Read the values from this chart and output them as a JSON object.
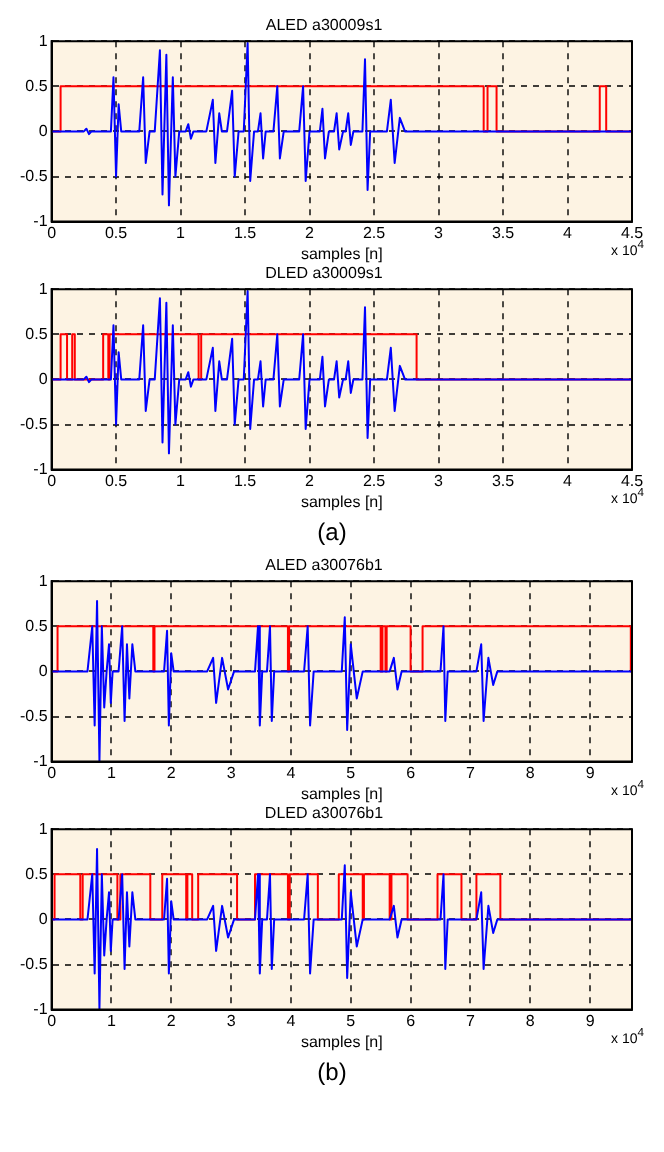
{
  "chart_data": [
    {
      "type": "line",
      "title": "ALED a30009s1",
      "xlabel": "samples [n]",
      "xlim": [
        0,
        4.5
      ],
      "xticks": [
        0,
        0.5,
        1,
        1.5,
        2,
        2.5,
        3,
        3.5,
        4,
        4.5
      ],
      "ylim": [
        -1,
        1
      ],
      "yticks": [
        -1,
        -0.5,
        0,
        0.5,
        1
      ],
      "grid": true,
      "legend": false,
      "marker": "none",
      "annotations": [
        "x 10$^{4}$"
      ],
      "series": [
        {
          "type": "line",
          "color": "#0000ff",
          "x": [
            0,
            0.25,
            0.27,
            0.29,
            0.31,
            0.46,
            0.48,
            0.5,
            0.52,
            0.54,
            0.68,
            0.71,
            0.73,
            0.76,
            0.8,
            0.84,
            0.86,
            0.89,
            0.91,
            0.94,
            0.96,
            0.99,
            1.04,
            1.06,
            1.08,
            1.1,
            1.2,
            1.25,
            1.27,
            1.3,
            1.32,
            1.36,
            1.4,
            1.42,
            1.45,
            1.49,
            1.52,
            1.54,
            1.57,
            1.6,
            1.62,
            1.64,
            1.66,
            1.72,
            1.75,
            1.77,
            1.8,
            1.92,
            1.95,
            1.97,
            2.0,
            2.08,
            2.1,
            2.12,
            2.15,
            2.19,
            2.21,
            2.23,
            2.26,
            2.28,
            2.3,
            2.32,
            2.34,
            2.41,
            2.43,
            2.45,
            2.47,
            2.6,
            2.63,
            2.66,
            2.7,
            2.74,
            4.5
          ],
          "values": [
            0,
            0,
            0.03,
            -0.03,
            0,
            0,
            0.6,
            -0.5,
            0.3,
            0,
            0,
            0.6,
            -0.35,
            0,
            0,
            0.9,
            -0.7,
            0.85,
            -0.82,
            0.6,
            -0.5,
            0,
            0,
            0.08,
            -0.08,
            0,
            0,
            0.35,
            -0.35,
            0.2,
            0,
            0,
            0.45,
            -0.5,
            0,
            0,
            0.98,
            -0.55,
            0,
            0,
            0.2,
            -0.3,
            0,
            0,
            0.5,
            -0.3,
            0,
            0,
            0.5,
            -0.55,
            0,
            0,
            0.25,
            -0.3,
            0,
            0,
            0.2,
            -0.2,
            0,
            0,
            0.2,
            -0.15,
            0,
            0,
            0.8,
            -0.65,
            0,
            0,
            0.35,
            -0.35,
            0.15,
            0,
            0
          ]
        },
        {
          "type": "step",
          "color": "#ff0000",
          "x": [
            0,
            0.07,
            3.35,
            3.38,
            3.45,
            4.25,
            4.3,
            4.5
          ],
          "values": [
            0,
            0.5,
            0,
            0.5,
            0,
            0.5,
            0,
            0
          ]
        }
      ]
    },
    {
      "type": "line",
      "title": "DLED a30009s1",
      "xlabel": "samples [n]",
      "xlim": [
        0,
        4.5
      ],
      "xticks": [
        0,
        0.5,
        1,
        1.5,
        2,
        2.5,
        3,
        3.5,
        4,
        4.5
      ],
      "ylim": [
        -1,
        1
      ],
      "yticks": [
        -1,
        -0.5,
        0,
        0.5,
        1
      ],
      "grid": true,
      "legend": false,
      "marker": "none",
      "annotations": [
        "x 10$^{4}$",
        "(a)"
      ],
      "series": [
        {
          "type": "line",
          "color": "#0000ff",
          "x": [
            0,
            0.25,
            0.27,
            0.29,
            0.31,
            0.46,
            0.48,
            0.5,
            0.52,
            0.54,
            0.68,
            0.71,
            0.73,
            0.76,
            0.8,
            0.84,
            0.86,
            0.89,
            0.91,
            0.94,
            0.96,
            0.99,
            1.04,
            1.06,
            1.08,
            1.1,
            1.2,
            1.25,
            1.27,
            1.3,
            1.32,
            1.36,
            1.4,
            1.42,
            1.45,
            1.49,
            1.52,
            1.54,
            1.57,
            1.6,
            1.62,
            1.64,
            1.66,
            1.72,
            1.75,
            1.77,
            1.8,
            1.92,
            1.95,
            1.97,
            2.0,
            2.08,
            2.1,
            2.12,
            2.15,
            2.19,
            2.21,
            2.23,
            2.26,
            2.28,
            2.3,
            2.32,
            2.34,
            2.41,
            2.43,
            2.45,
            2.47,
            2.6,
            2.63,
            2.66,
            2.7,
            2.74,
            4.5
          ],
          "values": [
            0,
            0,
            0.03,
            -0.03,
            0,
            0,
            0.6,
            -0.5,
            0.3,
            0,
            0,
            0.6,
            -0.35,
            0,
            0,
            0.9,
            -0.7,
            0.85,
            -0.82,
            0.6,
            -0.5,
            0,
            0,
            0.08,
            -0.08,
            0,
            0,
            0.35,
            -0.35,
            0.2,
            0,
            0,
            0.45,
            -0.5,
            0,
            0,
            0.98,
            -0.55,
            0,
            0,
            0.2,
            -0.3,
            0,
            0,
            0.5,
            -0.3,
            0,
            0,
            0.5,
            -0.55,
            0,
            0,
            0.25,
            -0.3,
            0,
            0,
            0.2,
            -0.2,
            0,
            0,
            0.2,
            -0.15,
            0,
            0,
            0.8,
            -0.65,
            0,
            0,
            0.35,
            -0.35,
            0.15,
            0,
            0
          ]
        },
        {
          "type": "step",
          "color": "#ff0000",
          "x": [
            0,
            0.07,
            0.12,
            0.16,
            0.18,
            0.4,
            0.44,
            0.45,
            1.14,
            1.16,
            2.83,
            4.5
          ],
          "values": [
            0,
            0.5,
            0,
            0.5,
            0,
            0.5,
            0,
            0.5,
            0,
            0.5,
            0,
            0
          ]
        }
      ]
    },
    {
      "type": "line",
      "title": "ALED a30076b1",
      "xlabel": "samples [n]",
      "xlim": [
        0,
        9.7
      ],
      "xticks": [
        0,
        1,
        2,
        3,
        4,
        5,
        6,
        7,
        8,
        9
      ],
      "ylim": [
        -1,
        1
      ],
      "yticks": [
        -1,
        -0.5,
        0,
        0.5,
        1
      ],
      "grid": true,
      "legend": false,
      "marker": "none",
      "annotations": [
        "x 10$^{4}$"
      ],
      "series": [
        {
          "type": "line",
          "color": "#0000ff",
          "x": [
            0,
            0.6,
            0.68,
            0.72,
            0.76,
            0.8,
            0.84,
            0.88,
            0.92,
            0.93,
            0.96,
            0.99,
            1.02,
            1.12,
            1.18,
            1.22,
            1.26,
            1.3,
            1.35,
            1.4,
            1.88,
            1.93,
            1.96,
            2.0,
            2.04,
            2.6,
            2.7,
            2.75,
            2.85,
            2.95,
            3.05,
            3.4,
            3.45,
            3.48,
            3.52,
            3.6,
            3.65,
            3.68,
            3.72,
            4.22,
            4.28,
            4.32,
            4.38,
            4.85,
            4.9,
            4.94,
            5.0,
            5.1,
            5.2,
            5.65,
            5.72,
            5.78,
            5.85,
            6.5,
            6.55,
            6.58,
            6.62,
            7.1,
            7.18,
            7.22,
            7.3,
            7.38,
            7.45,
            9.7
          ],
          "values": [
            0,
            0,
            0.5,
            -0.6,
            0.78,
            -1.0,
            0.5,
            -0.4,
            0,
            0,
            0.3,
            -0.35,
            0,
            0,
            0.5,
            -0.55,
            0.3,
            -0.3,
            0.3,
            0,
            0,
            0.45,
            -0.6,
            0.2,
            0,
            0,
            0.15,
            -0.35,
            0.15,
            -0.2,
            0,
            0,
            0.5,
            -0.6,
            0,
            0,
            0.5,
            -0.55,
            0,
            0,
            0.5,
            -0.6,
            0,
            0,
            0.6,
            -0.65,
            0.3,
            -0.3,
            0,
            0,
            0.15,
            -0.2,
            0,
            0,
            0.5,
            -0.55,
            0,
            0,
            0.3,
            -0.55,
            0.15,
            -0.15,
            0,
            0
          ]
        },
        {
          "type": "step",
          "color": "#ff0000",
          "x": [
            0,
            0.1,
            1.7,
            1.72,
            3.95,
            3.97,
            5.5,
            5.53,
            5.58,
            5.6,
            6.0,
            6.2,
            9.68,
            9.7
          ],
          "values": [
            0,
            0.5,
            0,
            0.5,
            0,
            0.5,
            0,
            0.5,
            0,
            0.5,
            0,
            0.5,
            0,
            0
          ]
        }
      ]
    },
    {
      "type": "line",
      "title": "DLED a30076b1",
      "xlabel": "samples [n]",
      "xlim": [
        0,
        9.7
      ],
      "xticks": [
        0,
        1,
        2,
        3,
        4,
        5,
        6,
        7,
        8,
        9
      ],
      "ylim": [
        -1,
        1
      ],
      "yticks": [
        -1,
        -0.5,
        0,
        0.5,
        1
      ],
      "grid": true,
      "legend": false,
      "marker": "none",
      "annotations": [
        "x 10$^{4}$",
        "(b)"
      ],
      "series": [
        {
          "type": "line",
          "color": "#0000ff",
          "x": [
            0,
            0.6,
            0.68,
            0.72,
            0.76,
            0.8,
            0.84,
            0.88,
            0.92,
            0.93,
            0.96,
            0.99,
            1.02,
            1.12,
            1.18,
            1.22,
            1.26,
            1.3,
            1.35,
            1.4,
            1.88,
            1.93,
            1.96,
            2.0,
            2.04,
            2.6,
            2.7,
            2.75,
            2.85,
            2.95,
            3.05,
            3.4,
            3.45,
            3.48,
            3.52,
            3.6,
            3.65,
            3.68,
            3.72,
            4.22,
            4.28,
            4.32,
            4.38,
            4.85,
            4.9,
            4.94,
            5.0,
            5.1,
            5.2,
            5.65,
            5.72,
            5.78,
            5.85,
            6.5,
            6.55,
            6.58,
            6.62,
            7.1,
            7.18,
            7.22,
            7.3,
            7.38,
            7.45,
            9.7
          ],
          "values": [
            0,
            0,
            0.5,
            -0.6,
            0.78,
            -1.0,
            0.5,
            -0.4,
            0,
            0,
            0.3,
            -0.35,
            0,
            0,
            0.5,
            -0.55,
            0.3,
            -0.3,
            0.3,
            0,
            0,
            0.45,
            -0.6,
            0.2,
            0,
            0,
            0.15,
            -0.35,
            0.15,
            -0.2,
            0,
            0,
            0.5,
            -0.6,
            0,
            0,
            0.5,
            -0.55,
            0,
            0,
            0.5,
            -0.6,
            0,
            0,
            0.6,
            -0.65,
            0.3,
            -0.3,
            0,
            0,
            0.15,
            -0.2,
            0,
            0,
            0.5,
            -0.55,
            0,
            0,
            0.3,
            -0.55,
            0.15,
            -0.15,
            0,
            0
          ]
        },
        {
          "type": "step",
          "color": "#ff0000",
          "x": [
            0,
            0.05,
            0.48,
            0.52,
            1.1,
            1.15,
            1.65,
            1.85,
            2.25,
            2.27,
            2.35,
            2.45,
            3.1,
            3.4,
            3.95,
            3.98,
            4.45,
            4.8,
            5.2,
            5.22,
            5.65,
            5.68,
            5.95,
            6.45,
            6.85,
            7.1,
            7.5,
            9.7
          ],
          "values": [
            0,
            0.5,
            0,
            0.5,
            0,
            0.5,
            0,
            0.5,
            0,
            0.5,
            0,
            0.5,
            0,
            0.5,
            0,
            0.5,
            0,
            0.5,
            0,
            0.5,
            0,
            0.5,
            0,
            0.5,
            0,
            0.5,
            0,
            0
          ]
        }
      ]
    }
  ]
}
